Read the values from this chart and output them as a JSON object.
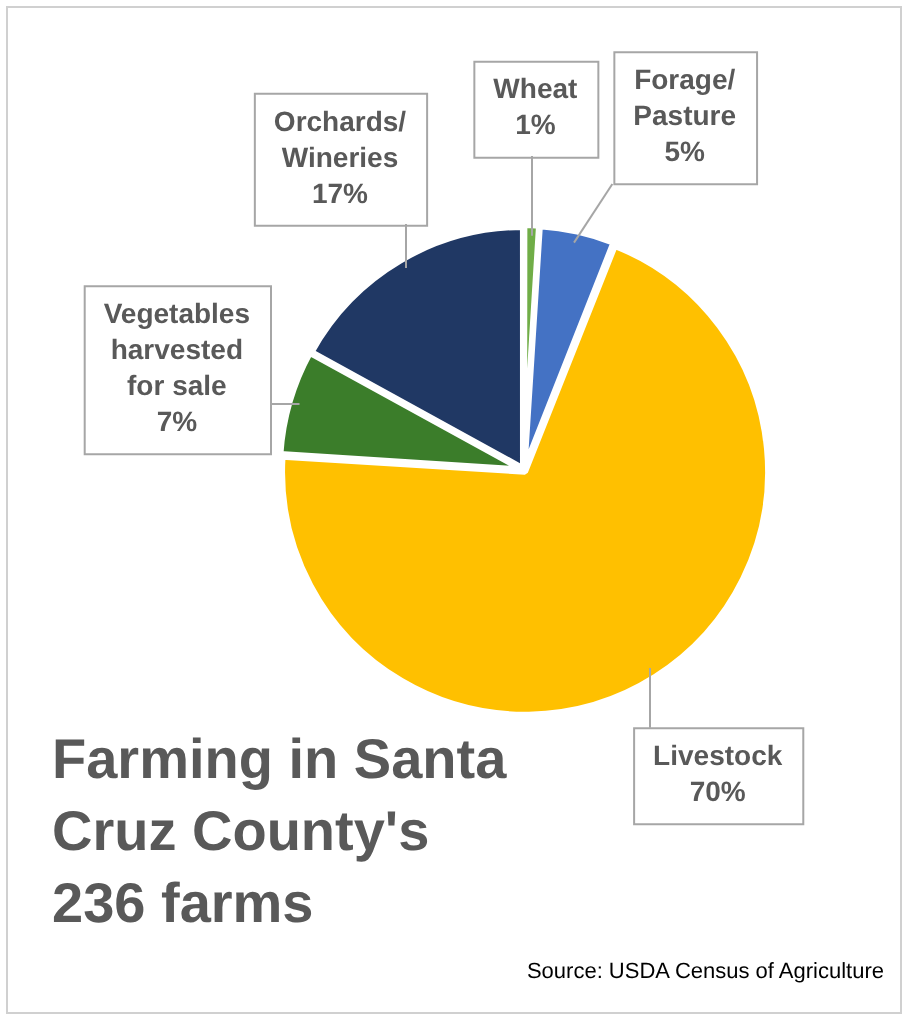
{
  "chart_data": {
    "type": "pie",
    "title": "Farming in Santa Cruz County's 236 farms",
    "categories": [
      "Wheat",
      "Forage/Pasture",
      "Livestock",
      "Vegetables harvested for sale",
      "Orchards/Wineries"
    ],
    "values": [
      1,
      5,
      70,
      7,
      17
    ],
    "value_labels": [
      "1%",
      "5%",
      "70%",
      "7%",
      "17%"
    ],
    "colors": [
      "#70ad47",
      "#4472c4",
      "#ffc000",
      "#3b7d2a",
      "#203864"
    ],
    "legend": false,
    "annotations": [
      "Source: USDA Census of Agriculture"
    ]
  }
}
